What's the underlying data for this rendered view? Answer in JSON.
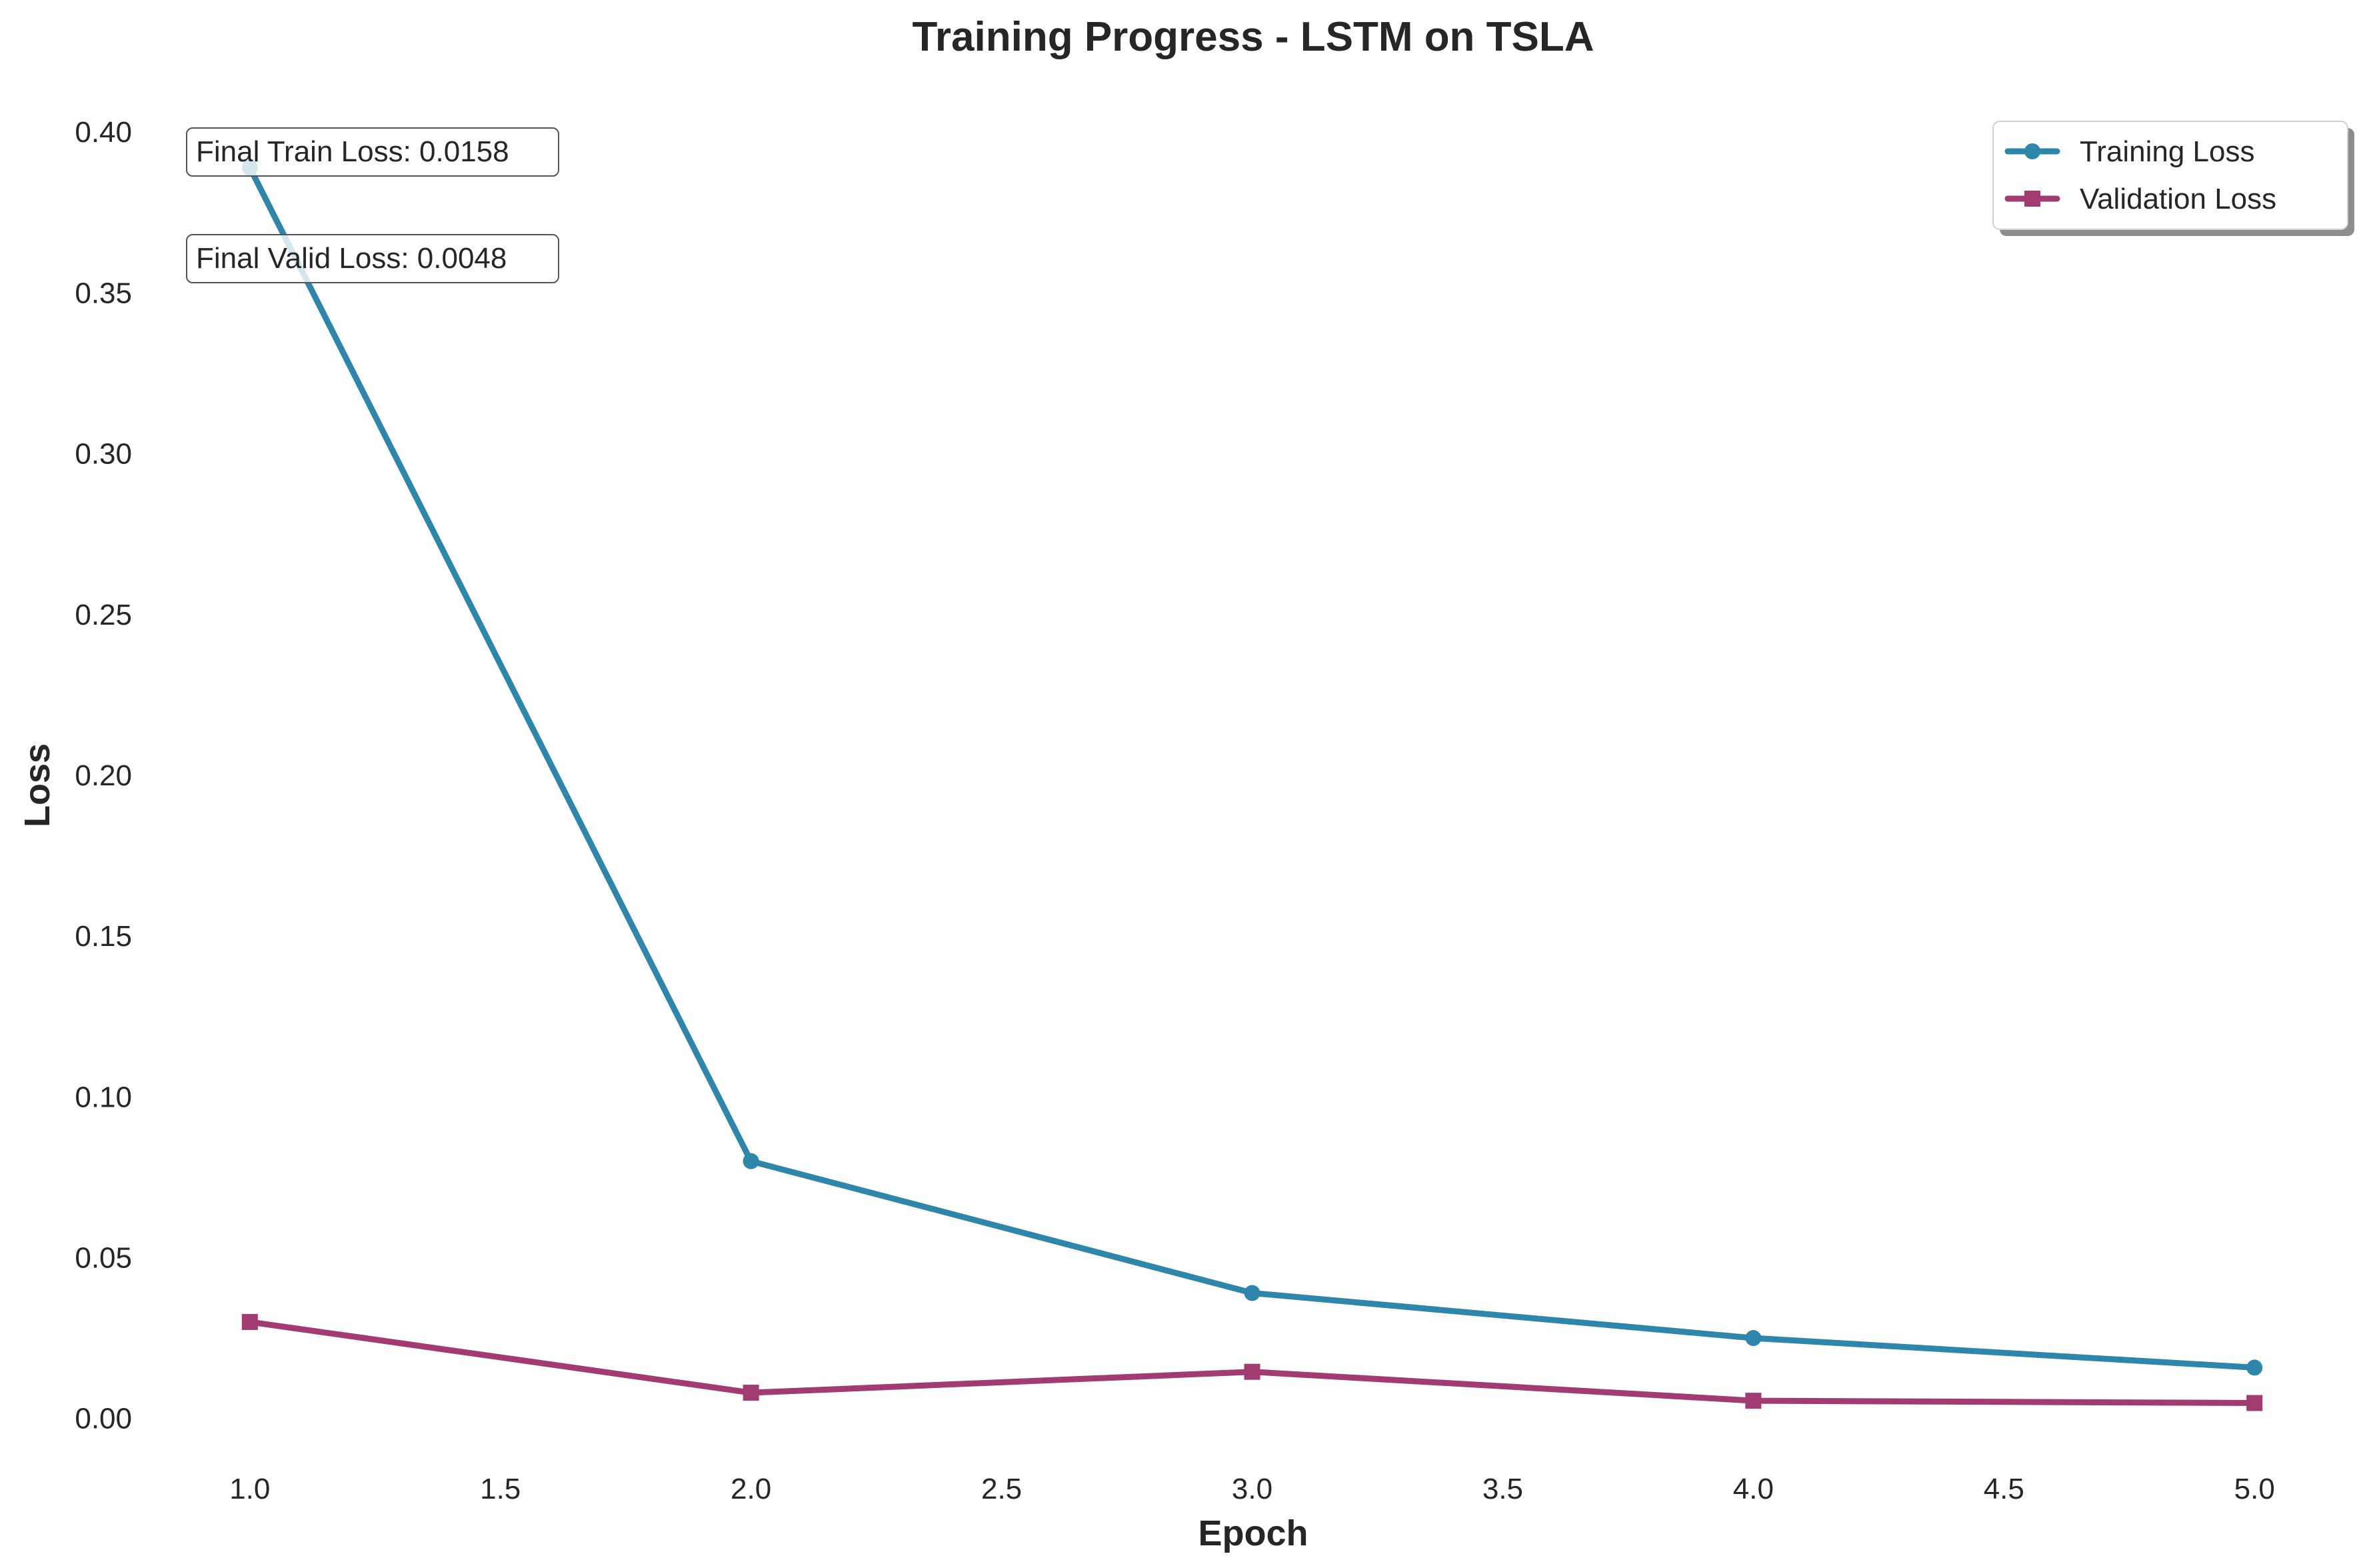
{
  "chart_data": {
    "type": "line",
    "title": "Training Progress - LSTM on TSLA",
    "xlabel": "Epoch",
    "ylabel": "Loss",
    "x": [
      1,
      2,
      3,
      4,
      5
    ],
    "xlim": [
      0.85,
      5.15
    ],
    "ylim": [
      -0.015,
      0.41
    ],
    "x_ticks": [
      1.0,
      1.5,
      2.0,
      2.5,
      3.0,
      3.5,
      4.0,
      4.5,
      5.0
    ],
    "x_tick_labels": [
      "1.0",
      "1.5",
      "2.0",
      "2.5",
      "3.0",
      "3.5",
      "4.0",
      "4.5",
      "5.0"
    ],
    "y_ticks": [
      0.0,
      0.05,
      0.1,
      0.15,
      0.2,
      0.25,
      0.3,
      0.35,
      0.4
    ],
    "y_tick_labels": [
      "0.00",
      "0.05",
      "0.10",
      "0.15",
      "0.20",
      "0.25",
      "0.30",
      "0.35",
      "0.40"
    ],
    "grid": false,
    "legend_position": "top-right",
    "series": [
      {
        "name": "Training Loss",
        "marker": "circle",
        "color": "#2E86AB",
        "values": [
          0.389,
          0.08,
          0.039,
          0.025,
          0.0158
        ]
      },
      {
        "name": "Validation Loss",
        "marker": "square",
        "color": "#A23B72",
        "values": [
          0.03,
          0.008,
          0.0145,
          0.0055,
          0.0048
        ]
      }
    ],
    "annotations": [
      "Final Train Loss: 0.0158",
      "Final Valid Loss: 0.0048"
    ]
  }
}
